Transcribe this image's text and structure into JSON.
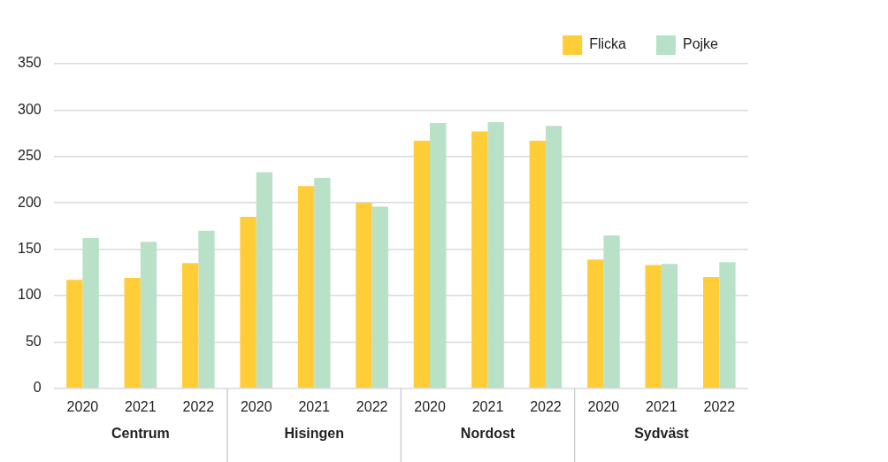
{
  "chart_data": {
    "type": "bar",
    "categories": [
      "2020",
      "2021",
      "2022",
      "2020",
      "2021",
      "2022",
      "2020",
      "2021",
      "2022",
      "2020",
      "2021",
      "2022"
    ],
    "series": [
      {
        "name": "Flicka",
        "color": "#ffcd38",
        "values": [
          117,
          119,
          135,
          185,
          218,
          200,
          267,
          277,
          267,
          139,
          133,
          120
        ]
      },
      {
        "name": "Pojke",
        "color": "#b9e1c8",
        "values": [
          162,
          158,
          170,
          233,
          227,
          196,
          286,
          287,
          283,
          165,
          134,
          136
        ]
      }
    ],
    "ylim": [
      0,
      350
    ],
    "yticks": [
      0,
      50,
      100,
      150,
      200,
      250,
      300,
      350
    ],
    "grid": "y",
    "legend": "top right",
    "annotations": [
      "Centrum",
      "Hisingen",
      "Nordost",
      "Sydväst"
    ]
  }
}
